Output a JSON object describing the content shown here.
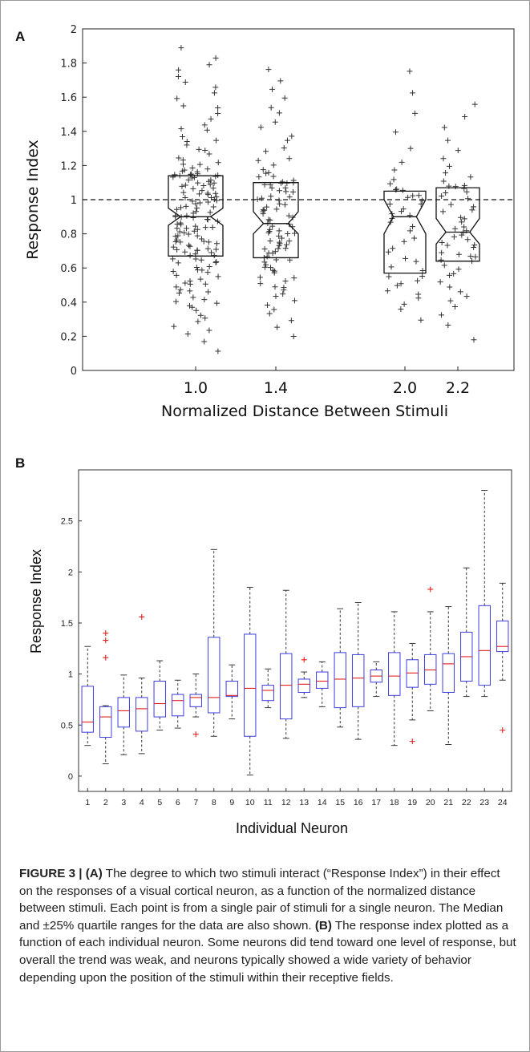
{
  "panel_a_label": "A",
  "panel_b_label": "B",
  "caption": {
    "figure_label": "FIGURE 3 |",
    "part_a_label": "(A)",
    "part_a_text": " The degree to which two stimuli interact (“Response Index”) in their effect on the responses of a visual cortical neuron, as a function of the normalized distance between stimuli. Each point is from a single pair of stimuli for a single neuron. The Median and ±25% quartile ranges for the data are also shown. ",
    "part_b_label": "(B)",
    "part_b_text": " The response index plotted as a function of each individual neuron. Some neurons did tend toward one level of response, but overall the trend was weak, and neurons typically showed a wide variety of behavior depending upon the position of the stimuli within their receptive fields."
  },
  "chart_data": [
    {
      "type": "scatter",
      "panel": "A",
      "title": "",
      "xlabel": "Normalized Distance Between Stimuli",
      "ylabel": "Response Index",
      "ylim": [
        0,
        2
      ],
      "yticks": [
        "0",
        "0.2",
        "0.4",
        "0.6",
        "0.8",
        "1",
        "1.2",
        "1.4",
        "1.6",
        "1.8",
        "2"
      ],
      "xticks": [
        "1.0",
        "1.4",
        "2.0",
        "2.2"
      ],
      "reference_line": {
        "y": 1,
        "style": "dashed"
      },
      "marker": "+",
      "grid": false,
      "groups": [
        {
          "x_label": "1.0",
          "n": 160,
          "median": 0.9,
          "q1": 0.67,
          "q3": 1.14,
          "notch_low": 0.85,
          "notch_high": 0.95,
          "min": 0.02,
          "max": 1.9
        },
        {
          "x_label": "1.4",
          "n": 100,
          "median": 0.86,
          "q1": 0.66,
          "q3": 1.1,
          "notch_low": 0.8,
          "notch_high": 0.93,
          "min": 0.1,
          "max": 1.79
        },
        {
          "x_label": "2.0",
          "n": 45,
          "median": 0.9,
          "q1": 0.57,
          "q3": 1.05,
          "notch_low": 0.8,
          "notch_high": 1.0,
          "min": 0.2,
          "max": 1.83
        },
        {
          "x_label": "2.2",
          "n": 55,
          "median": 0.81,
          "q1": 0.64,
          "q3": 1.07,
          "notch_low": 0.74,
          "notch_high": 0.89,
          "min": 0.04,
          "max": 1.61
        }
      ]
    },
    {
      "type": "box",
      "panel": "B",
      "title": "",
      "xlabel": "Individual Neuron",
      "ylabel": "Response Index",
      "ylim": [
        -0.15,
        3.0
      ],
      "yticks": [
        "0",
        "0.5",
        "1",
        "1.5",
        "2",
        "2.5"
      ],
      "categories": [
        "1",
        "2",
        "3",
        "4",
        "5",
        "6",
        "7",
        "8",
        "9",
        "10",
        "11",
        "12",
        "13",
        "14",
        "15",
        "16",
        "17",
        "18",
        "19",
        "20",
        "21",
        "22",
        "23",
        "24"
      ],
      "box_color": "#3d3de0",
      "median_color": "#e02020",
      "outlier_color": "#e02020",
      "grid": false,
      "boxes": [
        {
          "q1": 0.43,
          "median": 0.53,
          "q3": 0.88,
          "whisker_low": 0.3,
          "whisker_high": 1.27,
          "outliers": []
        },
        {
          "q1": 0.38,
          "median": 0.58,
          "q3": 0.68,
          "whisker_low": 0.12,
          "whisker_high": 0.69,
          "outliers": [
            1.4,
            1.33,
            1.16
          ]
        },
        {
          "q1": 0.48,
          "median": 0.64,
          "q3": 0.77,
          "whisker_low": 0.21,
          "whisker_high": 0.99,
          "outliers": []
        },
        {
          "q1": 0.44,
          "median": 0.66,
          "q3": 0.77,
          "whisker_low": 0.22,
          "whisker_high": 0.96,
          "outliers": [
            1.56
          ]
        },
        {
          "q1": 0.58,
          "median": 0.71,
          "q3": 0.93,
          "whisker_low": 0.45,
          "whisker_high": 1.13,
          "outliers": []
        },
        {
          "q1": 0.59,
          "median": 0.74,
          "q3": 0.8,
          "whisker_low": 0.47,
          "whisker_high": 0.94,
          "outliers": []
        },
        {
          "q1": 0.68,
          "median": 0.77,
          "q3": 0.8,
          "whisker_low": 0.58,
          "whisker_high": 1.0,
          "outliers": [
            0.41
          ]
        },
        {
          "q1": 0.62,
          "median": 0.77,
          "q3": 1.36,
          "whisker_low": 0.39,
          "whisker_high": 2.22,
          "outliers": []
        },
        {
          "q1": 0.78,
          "median": 0.79,
          "q3": 0.93,
          "whisker_low": 0.56,
          "whisker_high": 1.09,
          "outliers": []
        },
        {
          "q1": 0.39,
          "median": 0.86,
          "q3": 1.39,
          "whisker_low": 0.01,
          "whisker_high": 1.85,
          "outliers": []
        },
        {
          "q1": 0.74,
          "median": 0.84,
          "q3": 0.89,
          "whisker_low": 0.67,
          "whisker_high": 1.05,
          "outliers": []
        },
        {
          "q1": 0.56,
          "median": 0.89,
          "q3": 1.2,
          "whisker_low": 0.37,
          "whisker_high": 1.82,
          "outliers": []
        },
        {
          "q1": 0.82,
          "median": 0.9,
          "q3": 0.95,
          "whisker_low": 0.77,
          "whisker_high": 1.02,
          "outliers": [
            1.14
          ]
        },
        {
          "q1": 0.86,
          "median": 0.93,
          "q3": 1.02,
          "whisker_low": 0.68,
          "whisker_high": 1.12,
          "outliers": []
        },
        {
          "q1": 0.67,
          "median": 0.95,
          "q3": 1.21,
          "whisker_low": 0.48,
          "whisker_high": 1.64,
          "outliers": []
        },
        {
          "q1": 0.68,
          "median": 0.96,
          "q3": 1.19,
          "whisker_low": 0.36,
          "whisker_high": 1.7,
          "outliers": []
        },
        {
          "q1": 0.92,
          "median": 0.98,
          "q3": 1.04,
          "whisker_low": 0.78,
          "whisker_high": 1.12,
          "outliers": []
        },
        {
          "q1": 0.79,
          "median": 0.98,
          "q3": 1.21,
          "whisker_low": 0.3,
          "whisker_high": 1.61,
          "outliers": []
        },
        {
          "q1": 0.87,
          "median": 1.01,
          "q3": 1.14,
          "whisker_low": 0.55,
          "whisker_high": 1.3,
          "outliers": [
            0.34
          ]
        },
        {
          "q1": 0.9,
          "median": 1.04,
          "q3": 1.19,
          "whisker_low": 0.64,
          "whisker_high": 1.61,
          "outliers": [
            1.83
          ]
        },
        {
          "q1": 0.82,
          "median": 1.1,
          "q3": 1.2,
          "whisker_low": 0.31,
          "whisker_high": 1.66,
          "outliers": []
        },
        {
          "q1": 0.93,
          "median": 1.17,
          "q3": 1.41,
          "whisker_low": 0.78,
          "whisker_high": 2.04,
          "outliers": []
        },
        {
          "q1": 0.89,
          "median": 1.23,
          "q3": 1.67,
          "whisker_low": 0.78,
          "whisker_high": 2.8,
          "outliers": []
        },
        {
          "q1": 1.22,
          "median": 1.27,
          "q3": 1.52,
          "whisker_low": 0.94,
          "whisker_high": 1.89,
          "outliers": [
            0.45
          ]
        }
      ]
    }
  ]
}
